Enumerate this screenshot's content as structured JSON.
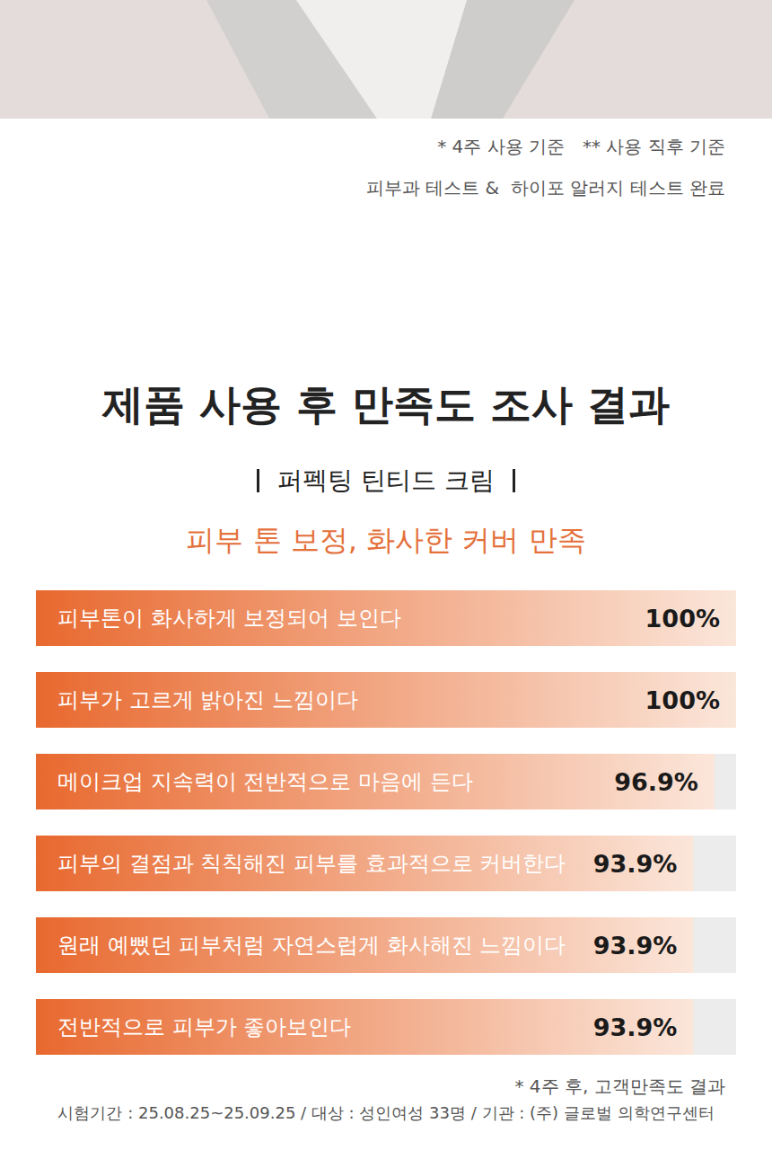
{
  "header": {
    "notes": [
      "* 4주 사용 기준",
      "** 사용 직후 기준"
    ],
    "test": "피부과 테스트 &  하이포 알러지 테스트 완료"
  },
  "chart_data": {
    "type": "bar",
    "orientation": "horizontal",
    "title": "제품 사용 후 만족도 조사 결과",
    "subtitle": "퍼펙팅 틴티드 크림",
    "annotation": "피부 톤 보정, 화사한 커버 만족",
    "categories": [
      "피부톤이 화사하게 보정되어 보인다",
      "피부가 고르게 밝아진 느낌이다",
      "메이크업 지속력이 전반적으로 마음에 든다",
      "피부의 결점과 칙칙해진 피부를 효과적으로 커버한다",
      "원래 예뻤던 피부처럼 자연스럽게 화사해진 느낌이다",
      "전반적으로 피부가 좋아보인다"
    ],
    "values": [
      100,
      100,
      96.9,
      93.9,
      93.9,
      93.9
    ],
    "value_labels": [
      "100%",
      "100%",
      "96.9%",
      "93.9%",
      "93.9%",
      "93.9%"
    ],
    "xlim": [
      0,
      100
    ],
    "data_labels": true,
    "tick_labels": false,
    "grid": false,
    "color": "#e8692f"
  },
  "footer": {
    "note": "* 4주 후, 고객만족도 결과",
    "test_info": "시험기간 : 25.08.25~25.09.25 / 대상 : 성인여성 33명 / 기관 : (주) 글로벌 의학연구센터"
  }
}
